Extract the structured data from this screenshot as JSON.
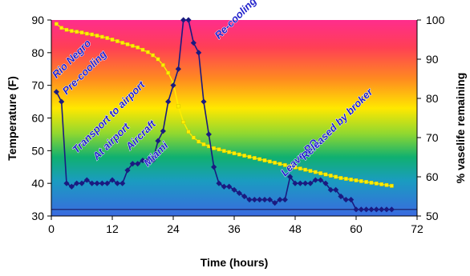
{
  "chart_data": {
    "type": "line",
    "title": "",
    "xlabel": "Time (hours)",
    "ylabel": "Temperature (F)",
    "y2label": "% vaselife remaining",
    "xlim": [
      0,
      72
    ],
    "ylim": [
      30,
      90
    ],
    "y2lim": [
      50,
      100
    ],
    "x_ticks": [
      "0",
      "12",
      "24",
      "36",
      "48",
      "60",
      "72"
    ],
    "y_ticks": [
      "30",
      "40",
      "50",
      "60",
      "70",
      "80",
      "90"
    ],
    "y2_ticks": [
      "50",
      "60",
      "70",
      "80",
      "90",
      "100"
    ],
    "reference_line_y": 32,
    "grid": false,
    "background": "vertical rainbow gradient (magenta top to blue bottom)",
    "series": [
      {
        "axis": "left",
        "marker": "diamond",
        "color": "#1a1a80",
        "points": [
          [
            1,
            68
          ],
          [
            2,
            65
          ],
          [
            3,
            40
          ],
          [
            4,
            39
          ],
          [
            5,
            40
          ],
          [
            6,
            40
          ],
          [
            7,
            41
          ],
          [
            8,
            40
          ],
          [
            9,
            40
          ],
          [
            10,
            40
          ],
          [
            11,
            40
          ],
          [
            12,
            41
          ],
          [
            13,
            40
          ],
          [
            14,
            40
          ],
          [
            15,
            44
          ],
          [
            16,
            46
          ],
          [
            17,
            46
          ],
          [
            18,
            47
          ],
          [
            19,
            47
          ],
          [
            20,
            47
          ],
          [
            21,
            53
          ],
          [
            22,
            56
          ],
          [
            23,
            65
          ],
          [
            24,
            70
          ],
          [
            25,
            75
          ],
          [
            26,
            90
          ],
          [
            27,
            90
          ],
          [
            28,
            83
          ],
          [
            29,
            80
          ],
          [
            30,
            65
          ],
          [
            31,
            55
          ],
          [
            32,
            45
          ],
          [
            33,
            40
          ],
          [
            34,
            39
          ],
          [
            35,
            39
          ],
          [
            36,
            38
          ],
          [
            37,
            37
          ],
          [
            38,
            36
          ],
          [
            39,
            35
          ],
          [
            40,
            35
          ],
          [
            41,
            35
          ],
          [
            42,
            35
          ],
          [
            43,
            35
          ],
          [
            44,
            34
          ],
          [
            45,
            35
          ],
          [
            46,
            35
          ],
          [
            47,
            42
          ],
          [
            48,
            40
          ],
          [
            49,
            40
          ],
          [
            50,
            40
          ],
          [
            51,
            40
          ],
          [
            52,
            41
          ],
          [
            53,
            41
          ],
          [
            54,
            40
          ],
          [
            55,
            38
          ],
          [
            56,
            38
          ],
          [
            57,
            36
          ],
          [
            58,
            35
          ],
          [
            59,
            35
          ],
          [
            60,
            32
          ],
          [
            61,
            32
          ],
          [
            62,
            32
          ],
          [
            63,
            32
          ],
          [
            64,
            32
          ],
          [
            65,
            32
          ],
          [
            66,
            32
          ],
          [
            67,
            32
          ]
        ]
      },
      {
        "axis": "right",
        "marker": "square",
        "color": "#ffee00",
        "points": [
          [
            1,
            99.0
          ],
          [
            2,
            98.0
          ],
          [
            3,
            97.5
          ],
          [
            4,
            97.2
          ],
          [
            5,
            97.0
          ],
          [
            6,
            96.8
          ],
          [
            7,
            96.5
          ],
          [
            8,
            96.3
          ],
          [
            9,
            96.0
          ],
          [
            10,
            95.7
          ],
          [
            11,
            95.4
          ],
          [
            12,
            95.0
          ],
          [
            13,
            94.6
          ],
          [
            14,
            94.2
          ],
          [
            15,
            93.8
          ],
          [
            16,
            93.4
          ],
          [
            17,
            93.0
          ],
          [
            18,
            92.4
          ],
          [
            19,
            91.8
          ],
          [
            20,
            91.0
          ],
          [
            21,
            90.0
          ],
          [
            22,
            88.5
          ],
          [
            23,
            86.5
          ],
          [
            24,
            84.0
          ],
          [
            25,
            78.0
          ],
          [
            26,
            74.0
          ],
          [
            27,
            71.5
          ],
          [
            28,
            70.0
          ],
          [
            29,
            69.0
          ],
          [
            30,
            68.3
          ],
          [
            31,
            67.8
          ],
          [
            32,
            67.3
          ],
          [
            33,
            67.0
          ],
          [
            34,
            66.6
          ],
          [
            35,
            66.3
          ],
          [
            36,
            66.0
          ],
          [
            37,
            65.7
          ],
          [
            38,
            65.4
          ],
          [
            39,
            65.1
          ],
          [
            40,
            64.8
          ],
          [
            41,
            64.5
          ],
          [
            42,
            64.2
          ],
          [
            43,
            63.9
          ],
          [
            44,
            63.6
          ],
          [
            45,
            63.3
          ],
          [
            46,
            63.0
          ],
          [
            47,
            62.7
          ],
          [
            48,
            62.4
          ],
          [
            49,
            62.1
          ],
          [
            50,
            61.8
          ],
          [
            51,
            61.5
          ],
          [
            52,
            61.2
          ],
          [
            53,
            60.9
          ],
          [
            54,
            60.6
          ],
          [
            55,
            60.3
          ],
          [
            56,
            60.0
          ],
          [
            57,
            59.7
          ],
          [
            58,
            59.5
          ],
          [
            59,
            59.3
          ],
          [
            60,
            59.1
          ],
          [
            61,
            58.9
          ],
          [
            62,
            58.7
          ],
          [
            63,
            58.5
          ],
          [
            64,
            58.3
          ],
          [
            65,
            58.1
          ],
          [
            66,
            57.9
          ],
          [
            67,
            57.7
          ]
        ]
      }
    ],
    "annotations": [
      {
        "text": "Rio Negro",
        "x": 1,
        "y": 72
      },
      {
        "text": "Pre-cooling",
        "x": 3,
        "y": 67
      },
      {
        "text": "Transport to airport",
        "x": 5,
        "y": 49
      },
      {
        "text": "At airport",
        "x": 9,
        "y": 47
      },
      {
        "text": "Aircraft",
        "x": 15.5,
        "y": 50
      },
      {
        "text": "Miami",
        "x": 19,
        "y": 45
      },
      {
        "text": "Re-cooling",
        "x": 33,
        "y": 84
      },
      {
        "text": "Leave PQ",
        "x": 46,
        "y": 42
      },
      {
        "text": "Released by broker",
        "x": 50,
        "y": 47
      }
    ]
  }
}
